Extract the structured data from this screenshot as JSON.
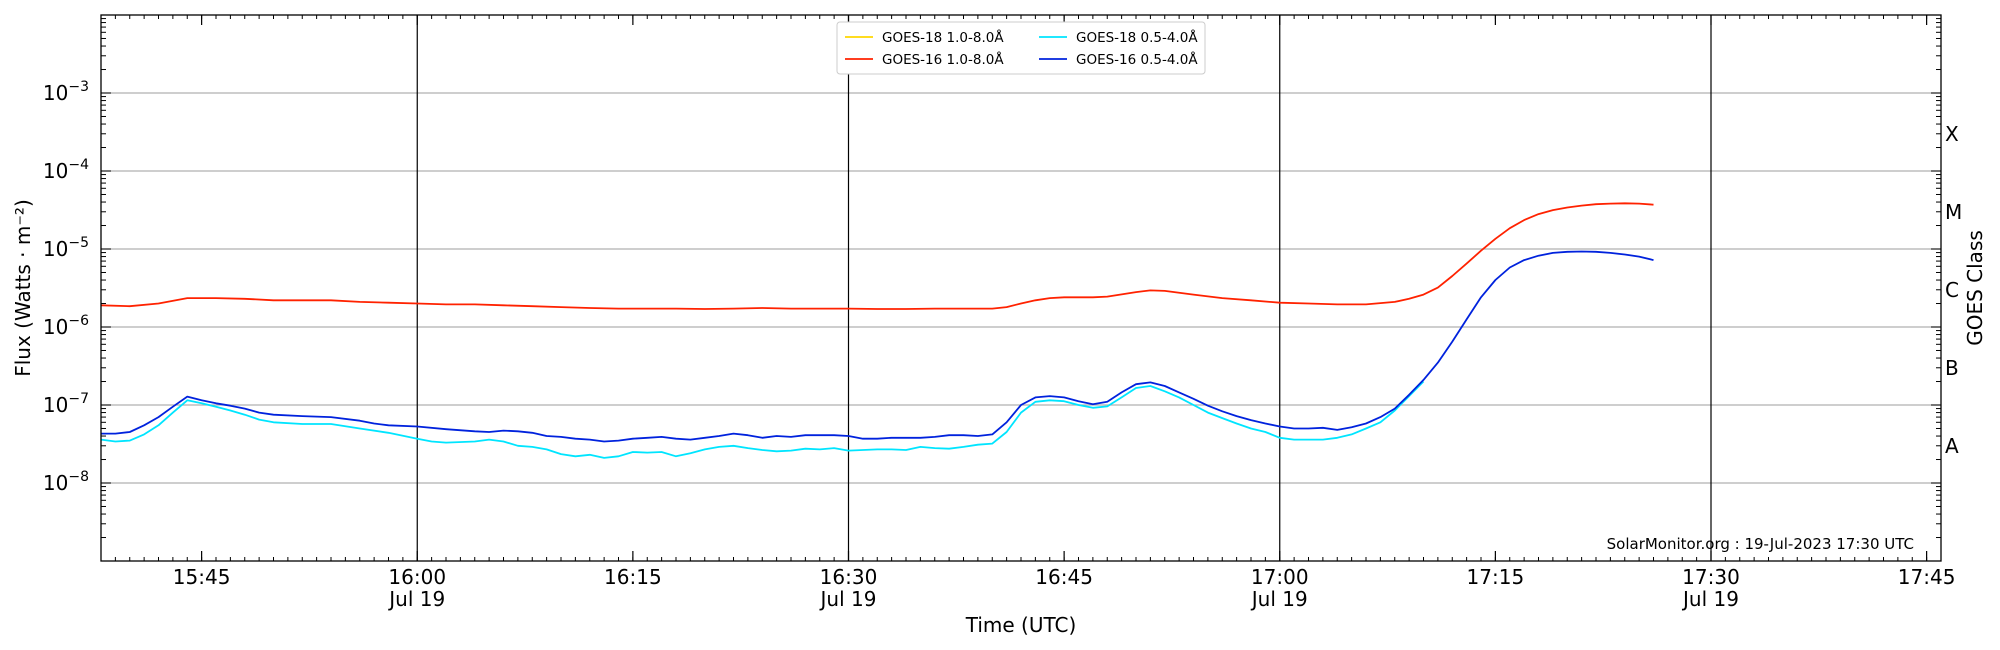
{
  "chart_data": {
    "type": "line",
    "title": "",
    "xlabel": "Time (UTC)",
    "ylabel": "Flux (Watts · m⁻²)",
    "ylabel_right": "GOES Class",
    "yscale": "log",
    "xlim": [
      "15:38",
      "17:46"
    ],
    "ylim": [
      1e-09,
      0.01
    ],
    "grid": "horizontal",
    "legend_position": "top-center",
    "credit": "SolarMonitor.org : 19-Jul-2023 17:30 UTC",
    "x_ticks": [
      {
        "time": "15:45",
        "label": "15:45",
        "sublabel": ""
      },
      {
        "time": "16:00",
        "label": "16:00",
        "sublabel": "Jul 19"
      },
      {
        "time": "16:15",
        "label": "16:15",
        "sublabel": ""
      },
      {
        "time": "16:30",
        "label": "16:30",
        "sublabel": "Jul 19"
      },
      {
        "time": "16:45",
        "label": "16:45",
        "sublabel": ""
      },
      {
        "time": "17:00",
        "label": "17:00",
        "sublabel": "Jul 19"
      },
      {
        "time": "17:15",
        "label": "17:15",
        "sublabel": ""
      },
      {
        "time": "17:30",
        "label": "17:30",
        "sublabel": "Jul 19"
      },
      {
        "time": "17:45",
        "label": "17:45",
        "sublabel": ""
      }
    ],
    "y_ticks": [
      {
        "value": 1e-08,
        "mantissa": "10",
        "exponent": "−8"
      },
      {
        "value": 1e-07,
        "mantissa": "10",
        "exponent": "−7"
      },
      {
        "value": 1e-06,
        "mantissa": "10",
        "exponent": "−6"
      },
      {
        "value": 1e-05,
        "mantissa": "10",
        "exponent": "−5"
      },
      {
        "value": 0.0001,
        "mantissa": "10",
        "exponent": "−4"
      },
      {
        "value": 0.001,
        "mantissa": "10",
        "exponent": "−3"
      }
    ],
    "goes_classes": [
      {
        "label": "A",
        "value": 3e-08
      },
      {
        "label": "B",
        "value": 3e-07
      },
      {
        "label": "C",
        "value": 3e-06
      },
      {
        "label": "M",
        "value": 3e-05
      },
      {
        "label": "X",
        "value": 0.0003
      }
    ],
    "series": [
      {
        "name": "GOES-18 1.0-8.0Å",
        "color": "#ffd700",
        "points": []
      },
      {
        "name": "GOES-16 1.0-8.0Å",
        "color": "#ff2200",
        "points": [
          [
            "15:38",
            1.9e-06
          ],
          [
            "15:40",
            1.85e-06
          ],
          [
            "15:42",
            2e-06
          ],
          [
            "15:44",
            2.35e-06
          ],
          [
            "15:46",
            2.35e-06
          ],
          [
            "15:48",
            2.3e-06
          ],
          [
            "15:50",
            2.2e-06
          ],
          [
            "15:52",
            2.2e-06
          ],
          [
            "15:54",
            2.2e-06
          ],
          [
            "15:56",
            2.1e-06
          ],
          [
            "15:58",
            2.05e-06
          ],
          [
            "16:00",
            2e-06
          ],
          [
            "16:02",
            1.95e-06
          ],
          [
            "16:04",
            1.95e-06
          ],
          [
            "16:06",
            1.9e-06
          ],
          [
            "16:08",
            1.85e-06
          ],
          [
            "16:10",
            1.8e-06
          ],
          [
            "16:12",
            1.75e-06
          ],
          [
            "16:14",
            1.72e-06
          ],
          [
            "16:16",
            1.72e-06
          ],
          [
            "16:18",
            1.72e-06
          ],
          [
            "16:20",
            1.7e-06
          ],
          [
            "16:22",
            1.72e-06
          ],
          [
            "16:24",
            1.75e-06
          ],
          [
            "16:26",
            1.72e-06
          ],
          [
            "16:28",
            1.72e-06
          ],
          [
            "16:30",
            1.72e-06
          ],
          [
            "16:32",
            1.7e-06
          ],
          [
            "16:34",
            1.7e-06
          ],
          [
            "16:36",
            1.72e-06
          ],
          [
            "16:38",
            1.72e-06
          ],
          [
            "16:40",
            1.72e-06
          ],
          [
            "16:41",
            1.8e-06
          ],
          [
            "16:42",
            2e-06
          ],
          [
            "16:43",
            2.2e-06
          ],
          [
            "16:44",
            2.35e-06
          ],
          [
            "16:45",
            2.4e-06
          ],
          [
            "16:47",
            2.4e-06
          ],
          [
            "16:48",
            2.45e-06
          ],
          [
            "16:50",
            2.8e-06
          ],
          [
            "16:51",
            2.95e-06
          ],
          [
            "16:52",
            2.9e-06
          ],
          [
            "16:54",
            2.6e-06
          ],
          [
            "16:56",
            2.35e-06
          ],
          [
            "16:58",
            2.2e-06
          ],
          [
            "17:00",
            2.05e-06
          ],
          [
            "17:02",
            2e-06
          ],
          [
            "17:04",
            1.95e-06
          ],
          [
            "17:06",
            1.95e-06
          ],
          [
            "17:08",
            2.1e-06
          ],
          [
            "17:09",
            2.3e-06
          ],
          [
            "17:10",
            2.6e-06
          ],
          [
            "17:11",
            3.2e-06
          ],
          [
            "17:12",
            4.5e-06
          ],
          [
            "17:13",
            6.5e-06
          ],
          [
            "17:14",
            9.5e-06
          ],
          [
            "17:15",
            1.35e-05
          ],
          [
            "17:16",
            1.85e-05
          ],
          [
            "17:17",
            2.35e-05
          ],
          [
            "17:18",
            2.8e-05
          ],
          [
            "17:19",
            3.15e-05
          ],
          [
            "17:20",
            3.4e-05
          ],
          [
            "17:21",
            3.6e-05
          ],
          [
            "17:22",
            3.75e-05
          ],
          [
            "17:23",
            3.82e-05
          ],
          [
            "17:24",
            3.85e-05
          ],
          [
            "17:25",
            3.82e-05
          ],
          [
            "17:26",
            3.7e-05
          ]
        ]
      },
      {
        "name": "GOES-18 0.5-4.0Å",
        "color": "#00e5ff",
        "points": [
          [
            "15:38",
            3.6e-08
          ],
          [
            "15:39",
            3.4e-08
          ],
          [
            "15:40",
            3.5e-08
          ],
          [
            "15:41",
            4.2e-08
          ],
          [
            "15:42",
            5.5e-08
          ],
          [
            "15:43",
            8e-08
          ],
          [
            "15:44",
            1.15e-07
          ],
          [
            "15:45",
            1.05e-07
          ],
          [
            "15:46",
            9.5e-08
          ],
          [
            "15:47",
            8.5e-08
          ],
          [
            "15:48",
            7.5e-08
          ],
          [
            "15:49",
            6.5e-08
          ],
          [
            "15:50",
            6e-08
          ],
          [
            "15:52",
            5.7e-08
          ],
          [
            "15:54",
            5.7e-08
          ],
          [
            "15:56",
            5e-08
          ],
          [
            "15:58",
            4.4e-08
          ],
          [
            "16:00",
            3.7e-08
          ],
          [
            "16:01",
            3.4e-08
          ],
          [
            "16:02",
            3.3e-08
          ],
          [
            "16:04",
            3.4e-08
          ],
          [
            "16:05",
            3.6e-08
          ],
          [
            "16:06",
            3.4e-08
          ],
          [
            "16:07",
            3e-08
          ],
          [
            "16:08",
            2.9e-08
          ],
          [
            "16:09",
            2.7e-08
          ],
          [
            "16:10",
            2.35e-08
          ],
          [
            "16:11",
            2.2e-08
          ],
          [
            "16:12",
            2.3e-08
          ],
          [
            "16:13",
            2.1e-08
          ],
          [
            "16:14",
            2.2e-08
          ],
          [
            "16:15",
            2.5e-08
          ],
          [
            "16:16",
            2.45e-08
          ],
          [
            "16:17",
            2.5e-08
          ],
          [
            "16:18",
            2.2e-08
          ],
          [
            "16:19",
            2.4e-08
          ],
          [
            "16:20",
            2.7e-08
          ],
          [
            "16:21",
            2.9e-08
          ],
          [
            "16:22",
            3e-08
          ],
          [
            "16:23",
            2.8e-08
          ],
          [
            "16:24",
            2.65e-08
          ],
          [
            "16:25",
            2.55e-08
          ],
          [
            "16:26",
            2.6e-08
          ],
          [
            "16:27",
            2.75e-08
          ],
          [
            "16:28",
            2.7e-08
          ],
          [
            "16:29",
            2.8e-08
          ],
          [
            "16:30",
            2.6e-08
          ],
          [
            "16:32",
            2.7e-08
          ],
          [
            "16:33",
            2.7e-08
          ],
          [
            "16:34",
            2.65e-08
          ],
          [
            "16:35",
            2.9e-08
          ],
          [
            "16:36",
            2.8e-08
          ],
          [
            "16:37",
            2.75e-08
          ],
          [
            "16:38",
            2.9e-08
          ],
          [
            "16:39",
            3.1e-08
          ],
          [
            "16:40",
            3.2e-08
          ],
          [
            "16:41",
            4.5e-08
          ],
          [
            "16:42",
            8e-08
          ],
          [
            "16:43",
            1.1e-07
          ],
          [
            "16:44",
            1.15e-07
          ],
          [
            "16:45",
            1.12e-07
          ],
          [
            "16:46",
            1e-07
          ],
          [
            "16:47",
            9.2e-08
          ],
          [
            "16:48",
            9.6e-08
          ],
          [
            "16:49",
            1.25e-07
          ],
          [
            "16:50",
            1.65e-07
          ],
          [
            "16:51",
            1.75e-07
          ],
          [
            "16:52",
            1.5e-07
          ],
          [
            "16:53",
            1.25e-07
          ],
          [
            "16:54",
            1e-07
          ],
          [
            "16:55",
            8e-08
          ],
          [
            "16:56",
            6.8e-08
          ],
          [
            "16:57",
            5.8e-08
          ],
          [
            "16:58",
            5e-08
          ],
          [
            "16:59",
            4.5e-08
          ],
          [
            "17:00",
            3.8e-08
          ],
          [
            "17:01",
            3.6e-08
          ],
          [
            "17:02",
            3.6e-08
          ],
          [
            "17:03",
            3.6e-08
          ],
          [
            "17:04",
            3.8e-08
          ],
          [
            "17:05",
            4.2e-08
          ],
          [
            "17:06",
            5e-08
          ],
          [
            "17:07",
            6e-08
          ],
          [
            "17:08",
            8.5e-08
          ],
          [
            "17:09",
            1.3e-07
          ],
          [
            "17:10",
            2e-07
          ]
        ]
      },
      {
        "name": "GOES-16 0.5-4.0Å",
        "color": "#0022dd",
        "points": [
          [
            "15:38",
            4.3e-08
          ],
          [
            "15:39",
            4.3e-08
          ],
          [
            "15:40",
            4.5e-08
          ],
          [
            "15:41",
            5.5e-08
          ],
          [
            "15:42",
            7e-08
          ],
          [
            "15:43",
            9.5e-08
          ],
          [
            "15:44",
            1.28e-07
          ],
          [
            "15:45",
            1.15e-07
          ],
          [
            "15:46",
            1.05e-07
          ],
          [
            "15:47",
            9.8e-08
          ],
          [
            "15:48",
            9e-08
          ],
          [
            "15:49",
            8e-08
          ],
          [
            "15:50",
            7.5e-08
          ],
          [
            "15:52",
            7.2e-08
          ],
          [
            "15:54",
            7e-08
          ],
          [
            "15:56",
            6.3e-08
          ],
          [
            "15:57",
            5.8e-08
          ],
          [
            "15:58",
            5.5e-08
          ],
          [
            "16:00",
            5.3e-08
          ],
          [
            "16:02",
            4.9e-08
          ],
          [
            "16:04",
            4.6e-08
          ],
          [
            "16:05",
            4.5e-08
          ],
          [
            "16:06",
            4.7e-08
          ],
          [
            "16:07",
            4.6e-08
          ],
          [
            "16:08",
            4.4e-08
          ],
          [
            "16:09",
            4e-08
          ],
          [
            "16:10",
            3.9e-08
          ],
          [
            "16:11",
            3.7e-08
          ],
          [
            "16:12",
            3.6e-08
          ],
          [
            "16:13",
            3.4e-08
          ],
          [
            "16:14",
            3.5e-08
          ],
          [
            "16:15",
            3.7e-08
          ],
          [
            "16:16",
            3.8e-08
          ],
          [
            "16:17",
            3.9e-08
          ],
          [
            "16:18",
            3.7e-08
          ],
          [
            "16:19",
            3.6e-08
          ],
          [
            "16:20",
            3.8e-08
          ],
          [
            "16:21",
            4e-08
          ],
          [
            "16:22",
            4.3e-08
          ],
          [
            "16:23",
            4.1e-08
          ],
          [
            "16:24",
            3.8e-08
          ],
          [
            "16:25",
            4e-08
          ],
          [
            "16:26",
            3.9e-08
          ],
          [
            "16:27",
            4.1e-08
          ],
          [
            "16:28",
            4.1e-08
          ],
          [
            "16:29",
            4.1e-08
          ],
          [
            "16:30",
            4e-08
          ],
          [
            "16:31",
            3.7e-08
          ],
          [
            "16:32",
            3.7e-08
          ],
          [
            "16:33",
            3.8e-08
          ],
          [
            "16:34",
            3.8e-08
          ],
          [
            "16:35",
            3.8e-08
          ],
          [
            "16:36",
            3.9e-08
          ],
          [
            "16:37",
            4.1e-08
          ],
          [
            "16:38",
            4.1e-08
          ],
          [
            "16:39",
            4e-08
          ],
          [
            "16:40",
            4.2e-08
          ],
          [
            "16:41",
            6e-08
          ],
          [
            "16:42",
            1e-07
          ],
          [
            "16:43",
            1.25e-07
          ],
          [
            "16:44",
            1.3e-07
          ],
          [
            "16:45",
            1.25e-07
          ],
          [
            "16:46",
            1.12e-07
          ],
          [
            "16:47",
            1.02e-07
          ],
          [
            "16:48",
            1.1e-07
          ],
          [
            "16:49",
            1.45e-07
          ],
          [
            "16:50",
            1.85e-07
          ],
          [
            "16:51",
            1.95e-07
          ],
          [
            "16:52",
            1.75e-07
          ],
          [
            "16:53",
            1.45e-07
          ],
          [
            "16:54",
            1.2e-07
          ],
          [
            "16:55",
            9.8e-08
          ],
          [
            "16:56",
            8.3e-08
          ],
          [
            "16:57",
            7.2e-08
          ],
          [
            "16:58",
            6.4e-08
          ],
          [
            "16:59",
            5.8e-08
          ],
          [
            "17:00",
            5.3e-08
          ],
          [
            "17:01",
            5e-08
          ],
          [
            "17:02",
            5e-08
          ],
          [
            "17:03",
            5.1e-08
          ],
          [
            "17:04",
            4.8e-08
          ],
          [
            "17:05",
            5.2e-08
          ],
          [
            "17:06",
            5.8e-08
          ],
          [
            "17:07",
            7e-08
          ],
          [
            "17:08",
            9e-08
          ],
          [
            "17:09",
            1.35e-07
          ],
          [
            "17:10",
            2.1e-07
          ],
          [
            "17:11",
            3.5e-07
          ],
          [
            "17:12",
            6.5e-07
          ],
          [
            "17:13",
            1.25e-06
          ],
          [
            "17:14",
            2.4e-06
          ],
          [
            "17:15",
            4e-06
          ],
          [
            "17:16",
            5.8e-06
          ],
          [
            "17:17",
            7.2e-06
          ],
          [
            "17:18",
            8.2e-06
          ],
          [
            "17:19",
            8.9e-06
          ],
          [
            "17:20",
            9.2e-06
          ],
          [
            "17:21",
            9.3e-06
          ],
          [
            "17:22",
            9.2e-06
          ],
          [
            "17:23",
            8.9e-06
          ],
          [
            "17:24",
            8.5e-06
          ],
          [
            "17:25",
            8e-06
          ],
          [
            "17:26",
            7.2e-06
          ]
        ]
      }
    ]
  }
}
